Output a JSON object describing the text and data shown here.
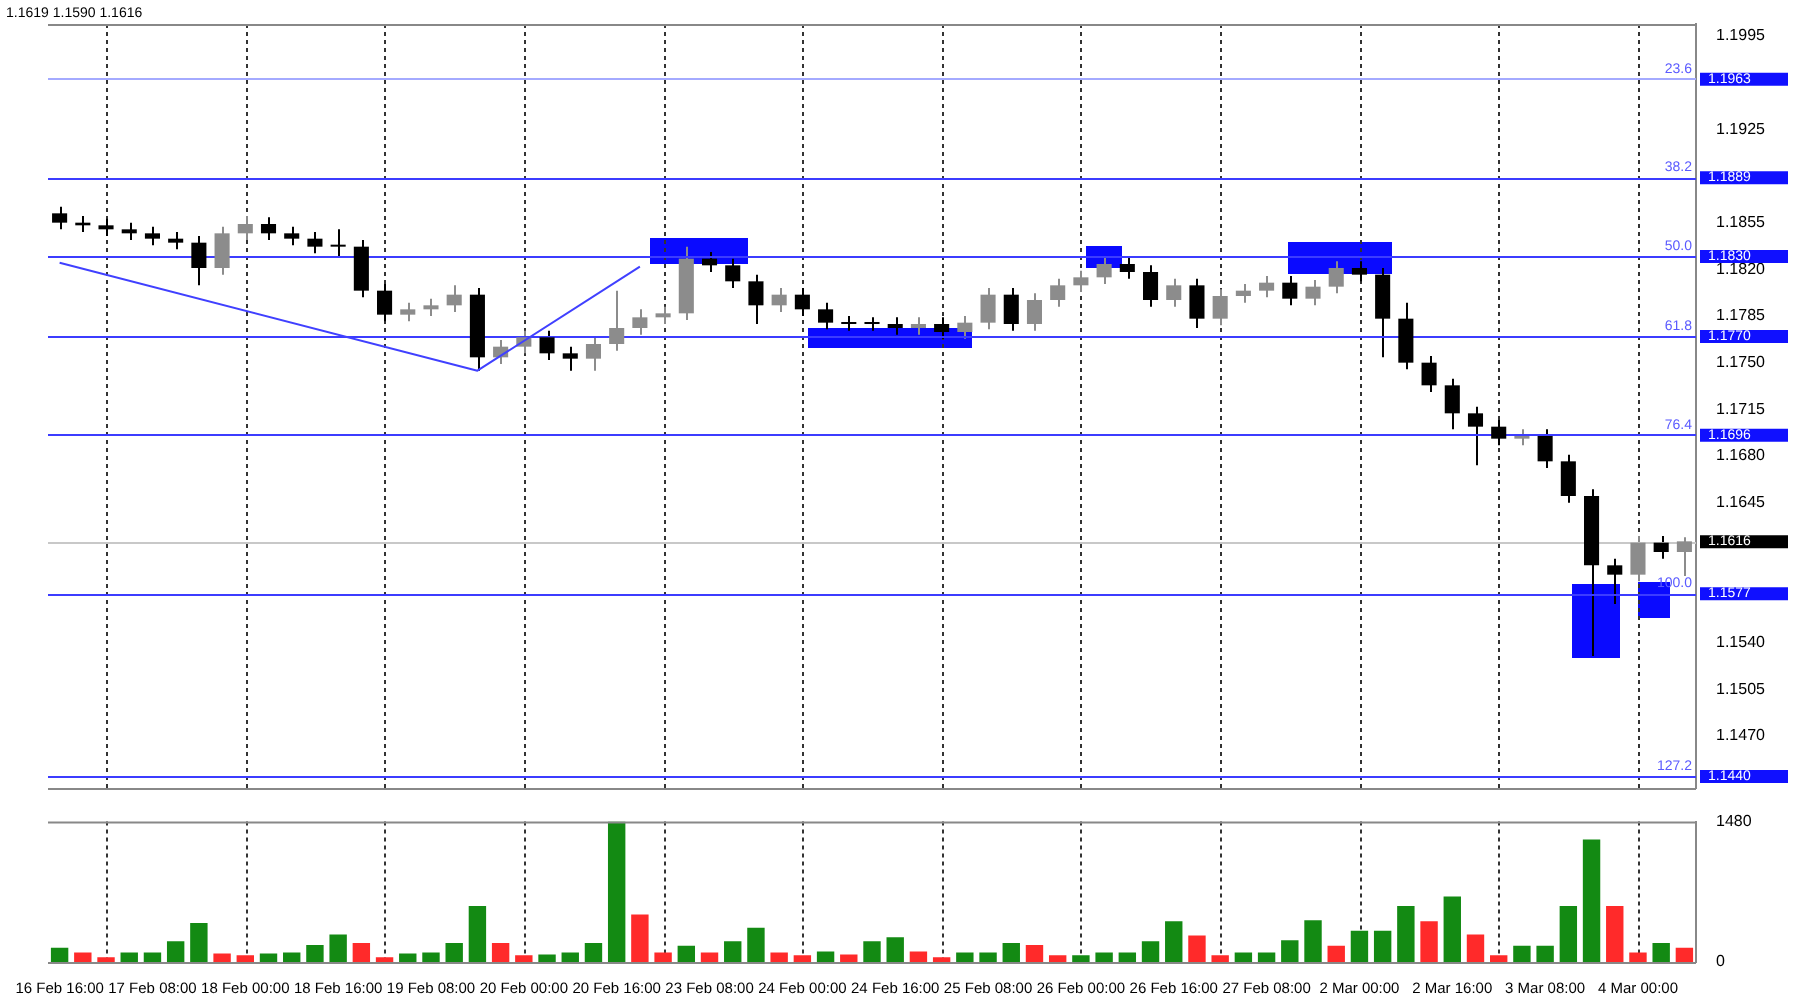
{
  "chart_data": [
    {
      "type": "candlestick",
      "categories": [
        null,
        null,
        null,
        null,
        null,
        null,
        null,
        null,
        null,
        null,
        null,
        null,
        null,
        null,
        null,
        null,
        null,
        null,
        null,
        null,
        null,
        null,
        null,
        null,
        null,
        null,
        null,
        null,
        null,
        null,
        null,
        null,
        null,
        null,
        null,
        null,
        null,
        null,
        null,
        null,
        null,
        null,
        null,
        null,
        null,
        null,
        null,
        null,
        null,
        null,
        null,
        null,
        null,
        null,
        null,
        null,
        null,
        null,
        null,
        null,
        null,
        null,
        null,
        null,
        null,
        null,
        null,
        null,
        null,
        null,
        null
      ],
      "ohlc": [
        [
          1.1862,
          1.1867,
          1.185,
          1.1855
        ],
        [
          1.1855,
          1.186,
          1.1848,
          1.1853
        ],
        [
          1.1853,
          1.1858,
          1.1845,
          1.185
        ],
        [
          1.185,
          1.1855,
          1.1842,
          1.1847
        ],
        [
          1.1847,
          1.1852,
          1.1838,
          1.1843
        ],
        [
          1.1843,
          1.1848,
          1.1835,
          1.184
        ],
        [
          1.184,
          1.1845,
          1.1808,
          1.1821
        ],
        [
          1.1821,
          1.1852,
          1.1816,
          1.1847
        ],
        [
          1.1847,
          1.186,
          1.1842,
          1.1854
        ],
        [
          1.1854,
          1.1859,
          1.1842,
          1.1847
        ],
        [
          1.1847,
          1.1852,
          1.1838,
          1.1843
        ],
        [
          1.1843,
          1.1848,
          1.1832,
          1.1837
        ],
        [
          1.1837,
          1.185,
          1.183,
          1.1837
        ],
        [
          1.1837,
          1.1842,
          1.1799,
          1.1804
        ],
        [
          1.1804,
          1.1809,
          1.1781,
          1.1786
        ],
        [
          1.1786,
          1.1795,
          1.1781,
          1.179
        ],
        [
          1.179,
          1.1798,
          1.1785,
          1.1793
        ],
        [
          1.1793,
          1.1808,
          1.1788,
          1.1801
        ],
        [
          1.1801,
          1.1806,
          1.1744,
          1.1754
        ],
        [
          1.1754,
          1.1767,
          1.1749,
          1.1762
        ],
        [
          1.1762,
          1.1774,
          1.1757,
          1.1769
        ],
        [
          1.1769,
          1.1774,
          1.1752,
          1.1757
        ],
        [
          1.1757,
          1.1762,
          1.1744,
          1.1753
        ],
        [
          1.1753,
          1.1769,
          1.1744,
          1.1764
        ],
        [
          1.1764,
          1.1804,
          1.1759,
          1.1776
        ],
        [
          1.1776,
          1.179,
          1.1771,
          1.1784
        ],
        [
          1.1784,
          1.1792,
          1.1779,
          1.1787
        ],
        [
          1.1787,
          1.1837,
          1.1782,
          1.1828
        ],
        [
          1.1828,
          1.1833,
          1.1818,
          1.1823
        ],
        [
          1.1823,
          1.1828,
          1.1806,
          1.1811
        ],
        [
          1.1811,
          1.1816,
          1.1779,
          1.1793
        ],
        [
          1.1793,
          1.1806,
          1.1788,
          1.1801
        ],
        [
          1.1801,
          1.1806,
          1.1785,
          1.179
        ],
        [
          1.179,
          1.1795,
          1.1775,
          1.178
        ],
        [
          1.178,
          1.1785,
          1.1774,
          1.1779
        ],
        [
          1.1779,
          1.1784,
          1.1774,
          1.1779
        ],
        [
          1.1779,
          1.1784,
          1.1771,
          1.1776
        ],
        [
          1.1776,
          1.1784,
          1.1771,
          1.1779
        ],
        [
          1.1779,
          1.1784,
          1.1768,
          1.1773
        ],
        [
          1.1773,
          1.1785,
          1.1768,
          1.178
        ],
        [
          1.178,
          1.1806,
          1.1775,
          1.1801
        ],
        [
          1.1801,
          1.1806,
          1.1774,
          1.1779
        ],
        [
          1.1779,
          1.1802,
          1.1774,
          1.1797
        ],
        [
          1.1797,
          1.1813,
          1.1792,
          1.1808
        ],
        [
          1.1808,
          1.1819,
          1.1803,
          1.1814
        ],
        [
          1.1814,
          1.183,
          1.1809,
          1.1824
        ],
        [
          1.1824,
          1.1829,
          1.1813,
          1.1818
        ],
        [
          1.1818,
          1.1823,
          1.1792,
          1.1797
        ],
        [
          1.1797,
          1.1813,
          1.1792,
          1.1808
        ],
        [
          1.1808,
          1.1813,
          1.1776,
          1.1783
        ],
        [
          1.1783,
          1.1805,
          1.1778,
          1.18
        ],
        [
          1.18,
          1.1809,
          1.1795,
          1.1804
        ],
        [
          1.1804,
          1.1815,
          1.1799,
          1.181
        ],
        [
          1.181,
          1.1815,
          1.1793,
          1.1798
        ],
        [
          1.1798,
          1.1812,
          1.1793,
          1.1807
        ],
        [
          1.1807,
          1.1826,
          1.1802,
          1.1821
        ],
        [
          1.1821,
          1.1826,
          1.1811,
          1.1816
        ],
        [
          1.1816,
          1.1821,
          1.1754,
          1.1783
        ],
        [
          1.1783,
          1.1795,
          1.1745,
          1.175
        ],
        [
          1.175,
          1.1755,
          1.1728,
          1.1733
        ],
        [
          1.1733,
          1.1738,
          1.17,
          1.1712
        ],
        [
          1.1712,
          1.1717,
          1.1673,
          1.1702
        ],
        [
          1.1702,
          1.1707,
          1.1688,
          1.1693
        ],
        [
          1.1693,
          1.17,
          1.1688,
          1.1695
        ],
        [
          1.1695,
          1.17,
          1.1671,
          1.1676
        ],
        [
          1.1676,
          1.1681,
          1.1645,
          1.165
        ],
        [
          1.165,
          1.1655,
          1.153,
          1.1598
        ],
        [
          1.1598,
          1.1603,
          1.1569,
          1.1591
        ],
        [
          1.1591,
          1.162,
          1.1586,
          1.1615
        ],
        [
          1.1615,
          1.162,
          1.1603,
          1.1608
        ],
        [
          1.1608,
          1.1619,
          1.159,
          1.1616
        ]
      ],
      "colors": [
        "#000000",
        "#000000",
        "#000000",
        "#000000",
        "#000000",
        "#000000",
        "#000000",
        "#8c8c8c",
        "#8c8c8c",
        "#000000",
        "#000000",
        "#000000",
        "#000000",
        "#000000",
        "#000000",
        "#8c8c8c",
        "#8c8c8c",
        "#8c8c8c",
        "#000000",
        "#8c8c8c",
        "#8c8c8c",
        "#000000",
        "#000000",
        "#8c8c8c",
        "#8c8c8c",
        "#8c8c8c",
        "#8c8c8c",
        "#8c8c8c",
        "#000000",
        "#000000",
        "#000000",
        "#8c8c8c",
        "#000000",
        "#000000",
        "#000000",
        "#000000",
        "#000000",
        "#8c8c8c",
        "#000000",
        "#8c8c8c",
        "#8c8c8c",
        "#000000",
        "#8c8c8c",
        "#8c8c8c",
        "#8c8c8c",
        "#8c8c8c",
        "#000000",
        "#000000",
        "#8c8c8c",
        "#000000",
        "#8c8c8c",
        "#8c8c8c",
        "#8c8c8c",
        "#000000",
        "#8c8c8c",
        "#8c8c8c",
        "#000000",
        "#000000",
        "#000000",
        "#000000",
        "#000000",
        "#000000",
        "#000000",
        "#8c8c8c",
        "#000000",
        "#000000",
        "#000000",
        "#000000",
        "#8c8c8c",
        "#000000",
        "#8c8c8c"
      ],
      "series": [
        {
          "type": "line",
          "color": "#4040ff",
          "values": [
            1.1825,
            null,
            null,
            null,
            null,
            null,
            null,
            null,
            null,
            null,
            null,
            null,
            null,
            null,
            null,
            null,
            null,
            null,
            1.1744,
            null,
            null,
            null,
            null,
            null,
            null,
            1.1822,
            null,
            null,
            null,
            null,
            null,
            null,
            null,
            null,
            null,
            null,
            null,
            null,
            null,
            null,
            null,
            null,
            null,
            null,
            null,
            null,
            null,
            null,
            null,
            null,
            null,
            null,
            null,
            null,
            null,
            null,
            null,
            null,
            null,
            null,
            null,
            null,
            null,
            null,
            null,
            null,
            null,
            null,
            null,
            null,
            null
          ]
        }
      ],
      "ylim": [
        1.1431,
        1.2004
      ],
      "yticks": [
        1.1995,
        1.1925,
        1.1855,
        {
          "value": 1.182,
          "label": "1.1820"
        },
        1.1785,
        {
          "value": 1.175,
          "label": "1.1750"
        },
        1.1715,
        {
          "value": 1.168,
          "label": "1.1680"
        },
        1.1645,
        {
          "value": 1.154,
          "label": "1.1540"
        },
        1.1505,
        {
          "value": 1.147,
          "label": "1.1470"
        }
      ],
      "ref_lines": [
        {
          "axis": "y",
          "value": 1.1963,
          "label": "1.1963",
          "color": "#a4aaff"
        },
        {
          "axis": "y",
          "value": 1.1889,
          "label": "1.1889",
          "color": "#3c3cff"
        },
        {
          "axis": "y",
          "value": 1.183,
          "label": "1.1830",
          "color": "#3c3cff"
        },
        {
          "axis": "y",
          "value": 1.177,
          "label": "1.1770",
          "color": "#3c3cff"
        },
        {
          "axis": "y",
          "value": 1.1696,
          "label": "1.1696",
          "color": "#3c3cff"
        },
        {
          "axis": "y",
          "value": 1.1616,
          "label": "1.1616",
          "color": "#c8c8c8"
        },
        {
          "axis": "y",
          "value": 1.1577,
          "label": "1.1577",
          "color": "#3c3cff"
        },
        {
          "axis": "y",
          "value": 1.144,
          "label": "1.1440",
          "color": "#3c3cff"
        }
      ],
      "annotations": [
        "1.1619 1.1590 1.1616",
        {
          "text": "23.6",
          "y": 1.1963
        },
        {
          "text": "38.2",
          "y": 1.1889
        },
        {
          "text": "50.0",
          "y": 1.183
        },
        {
          "text": "61.8",
          "y": 1.177
        },
        {
          "text": "76.4",
          "y": 1.1696
        },
        {
          "text": "100.0",
          "y": 1.1577
        },
        {
          "text": "127.2",
          "y": 1.144
        }
      ],
      "grid": "x"
    },
    {
      "type": "bar",
      "categories": [
        "16 Feb 16:00",
        null,
        null,
        null,
        "17 Feb 08:00",
        null,
        null,
        null,
        "18 Feb 00:00",
        null,
        null,
        null,
        "18 Feb 16:00",
        null,
        null,
        null,
        "19 Feb 08:00",
        null,
        null,
        null,
        "20 Feb 00:00",
        null,
        null,
        null,
        "20 Feb 16:00",
        null,
        null,
        null,
        "23 Feb 08:00",
        null,
        null,
        null,
        "24 Feb 00:00",
        null,
        null,
        null,
        "24 Feb 16:00",
        null,
        null,
        null,
        "25 Feb 08:00",
        null,
        null,
        null,
        "26 Feb 00:00",
        null,
        null,
        null,
        "26 Feb 16:00",
        null,
        null,
        null,
        "27 Feb 08:00",
        null,
        null,
        null,
        "2 Mar 00:00",
        null,
        null,
        null,
        "2 Mar 16:00",
        null,
        null,
        null,
        "3 Mar 08:00",
        null,
        null,
        null,
        "4 Mar 00:00",
        null,
        null
      ],
      "values": [
        150,
        100,
        50,
        100,
        100,
        220,
        410,
        90,
        70,
        90,
        100,
        180,
        290,
        200,
        50,
        90,
        100,
        200,
        590,
        200,
        70,
        80,
        100,
        200,
        1480,
        500,
        100,
        170,
        100,
        220,
        360,
        100,
        70,
        110,
        80,
        220,
        260,
        110,
        50,
        100,
        100,
        200,
        180,
        70,
        70,
        100,
        100,
        220,
        430,
        280,
        70,
        100,
        100,
        230,
        440,
        170,
        330,
        330,
        590,
        430,
        690,
        290,
        70,
        170,
        170,
        590,
        1290,
        590,
        100,
        200,
        150
      ],
      "colors": [
        "#138a13",
        "#ff2a2a",
        "#ff2a2a",
        "#138a13",
        "#138a13",
        "#138a13",
        "#138a13",
        "#ff2a2a",
        "#ff2a2a",
        "#138a13",
        "#138a13",
        "#138a13",
        "#138a13",
        "#ff2a2a",
        "#ff2a2a",
        "#138a13",
        "#138a13",
        "#138a13",
        "#138a13",
        "#ff2a2a",
        "#ff2a2a",
        "#138a13",
        "#138a13",
        "#138a13",
        "#138a13",
        "#ff2a2a",
        "#ff2a2a",
        "#138a13",
        "#ff2a2a",
        "#138a13",
        "#138a13",
        "#ff2a2a",
        "#ff2a2a",
        "#138a13",
        "#ff2a2a",
        "#138a13",
        "#138a13",
        "#ff2a2a",
        "#ff2a2a",
        "#138a13",
        "#138a13",
        "#138a13",
        "#ff2a2a",
        "#ff2a2a",
        "#138a13",
        "#138a13",
        "#138a13",
        "#138a13",
        "#138a13",
        "#ff2a2a",
        "#ff2a2a",
        "#138a13",
        "#138a13",
        "#138a13",
        "#138a13",
        "#ff2a2a",
        "#138a13",
        "#138a13",
        "#138a13",
        "#ff2a2a",
        "#138a13",
        "#ff2a2a",
        "#ff2a2a",
        "#138a13",
        "#138a13",
        "#138a13",
        "#138a13",
        "#ff2a2a",
        "#ff2a2a",
        "#138a13",
        "#ff2a2a"
      ],
      "ylim": [
        0,
        1480
      ],
      "yticks": [
        0,
        1480
      ],
      "grid": "x"
    }
  ]
}
